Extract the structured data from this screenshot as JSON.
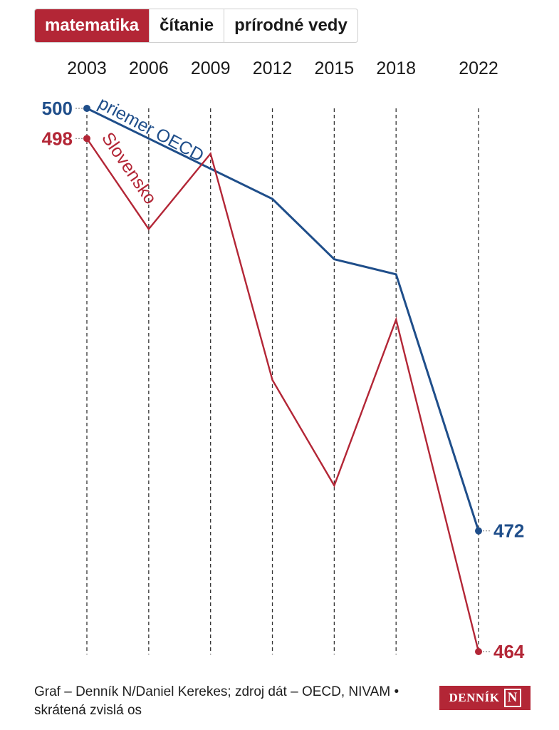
{
  "tabs": [
    {
      "label": "matematika",
      "active": true
    },
    {
      "label": "čítanie",
      "active": false
    },
    {
      "label": "prírodné vedy",
      "active": false
    }
  ],
  "chart_data": {
    "type": "line",
    "x": [
      "2003",
      "2006",
      "2009",
      "2012",
      "2015",
      "2018",
      "2022"
    ],
    "ylim": [
      464,
      500
    ],
    "series": [
      {
        "name": "priemer OECD",
        "color": "#1f4e8a",
        "values": [
          500,
          498,
          496,
          494,
          490,
          489,
          472
        ]
      },
      {
        "name": "Slovensko",
        "color": "#b32636",
        "values": [
          498,
          492,
          497,
          482,
          475,
          486,
          464
        ]
      }
    ],
    "start_labels": [
      "500",
      "498"
    ],
    "end_labels": [
      "472",
      "464"
    ],
    "grid": "vertical dashed"
  },
  "footer": {
    "line1": "Graf – Denník N/Daniel Kerekes; zdroj dát – OECD, NIVAM •",
    "line2": "skrátená zvislá os"
  },
  "logo": {
    "text": "DENNÍK",
    "mark": "N"
  }
}
